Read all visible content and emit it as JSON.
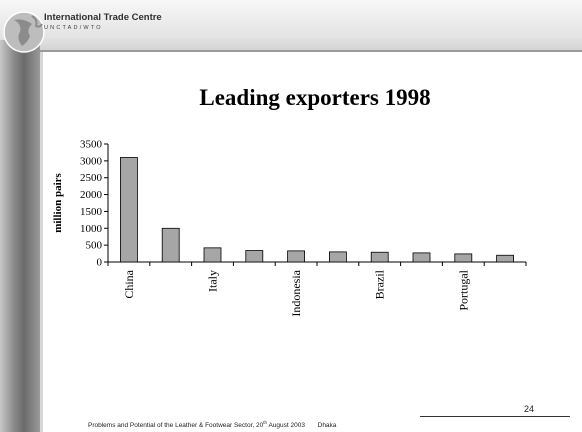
{
  "header": {
    "org_name": "International Trade Centre",
    "org_subtitle": "UNCTAD/WTO"
  },
  "slide": {
    "title": "Leading exporters 1998",
    "page_number": "24"
  },
  "footer": {
    "text_before_sup": "Problems and Potential of the Leather & Footwear Sector, 20",
    "sup": "th",
    "text_after_sup": " August 2003",
    "location": "Dhaka"
  },
  "chart_data": {
    "type": "bar",
    "title": "Leading exporters 1998",
    "ylabel": "million pairs",
    "xlabel": "",
    "ylim": [
      0,
      3500
    ],
    "yticks": [
      0,
      500,
      1000,
      1500,
      2000,
      2500,
      3000,
      3500
    ],
    "categories": [
      "China",
      "",
      "Italy",
      "",
      "Indonesia",
      "",
      "Brazil",
      "",
      "Portugal",
      ""
    ],
    "values": [
      3100,
      1000,
      420,
      340,
      330,
      300,
      290,
      270,
      240,
      200
    ],
    "grid": false,
    "legend": "none",
    "bar_color": "#a6a6a6"
  }
}
